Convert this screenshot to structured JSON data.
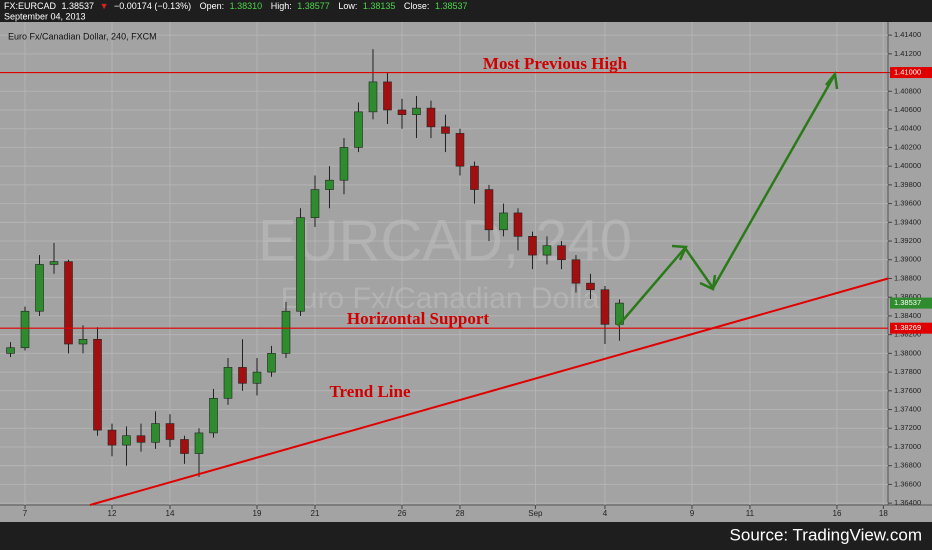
{
  "header": {
    "symbol": "FX:EURCAD",
    "last": "1.38537",
    "arrow": "▼",
    "change": "−0.00174 (−0.13%)",
    "open_label": "Open:",
    "open": "1.38310",
    "high_label": "High:",
    "high": "1.38577",
    "low_label": "Low:",
    "low": "1.38135",
    "close_label": "Close:",
    "close": "1.38537",
    "date": "September 04, 2013"
  },
  "chart_data": {
    "type": "candlestick",
    "title": "Euro Fx/Canadian Dollar, 240, FXCM",
    "watermark": [
      "EURCAD, 240",
      "Euro Fx/Canadian Dollar"
    ],
    "up_color": "#2e8b2e",
    "down_color": "#a01010",
    "grid": true,
    "x": [
      -0.5,
      0,
      0.5,
      1,
      1.5,
      2,
      2.5,
      3,
      3.5,
      4,
      4.5,
      5,
      5.5,
      6,
      6.5,
      7,
      7.5,
      8,
      8.5,
      9,
      9.5,
      10,
      10.5,
      11,
      11.5,
      12,
      12.5,
      13,
      13.5,
      14,
      14.5,
      15,
      15.5,
      16,
      16.5,
      17,
      17.5,
      18,
      18.5,
      19,
      19.5,
      20,
      20.5
    ],
    "open": [
      1.38,
      1.3806,
      1.3845,
      1.3895,
      1.3898,
      1.381,
      1.3815,
      1.3718,
      1.3702,
      1.3712,
      1.3705,
      1.3725,
      1.3708,
      1.3693,
      1.3715,
      1.3752,
      1.3785,
      1.3768,
      1.378,
      1.38,
      1.3845,
      1.3945,
      1.3975,
      1.3985,
      1.402,
      1.4058,
      1.409,
      1.406,
      1.4055,
      1.4062,
      1.4042,
      1.4035,
      1.4,
      1.3975,
      1.3932,
      1.395,
      1.3925,
      1.3905,
      1.3915,
      1.39,
      1.3875,
      1.3868,
      1.3831
    ],
    "high": [
      1.3812,
      1.385,
      1.3905,
      1.3918,
      1.39,
      1.383,
      1.3828,
      1.3725,
      1.3722,
      1.3725,
      1.3738,
      1.3735,
      1.3712,
      1.372,
      1.3762,
      1.3795,
      1.3815,
      1.3795,
      1.3808,
      1.3855,
      1.3955,
      1.399,
      1.4,
      1.403,
      1.4068,
      1.4125,
      1.41,
      1.4072,
      1.4075,
      1.407,
      1.4055,
      1.404,
      1.4005,
      1.398,
      1.396,
      1.3955,
      1.393,
      1.3925,
      1.392,
      1.3905,
      1.3885,
      1.3872,
      1.38577
    ],
    "low": [
      1.3796,
      1.3803,
      1.384,
      1.3885,
      1.38,
      1.38,
      1.3712,
      1.369,
      1.368,
      1.3695,
      1.3698,
      1.37,
      1.3682,
      1.3668,
      1.371,
      1.3745,
      1.376,
      1.3755,
      1.3775,
      1.3795,
      1.384,
      1.3935,
      1.3955,
      1.397,
      1.4015,
      1.405,
      1.4045,
      1.404,
      1.403,
      1.403,
      1.4015,
      1.399,
      1.396,
      1.392,
      1.3925,
      1.391,
      1.389,
      1.3895,
      1.389,
      1.3865,
      1.3858,
      1.381,
      1.38135
    ],
    "close": [
      1.3806,
      1.3845,
      1.3895,
      1.3898,
      1.381,
      1.3815,
      1.3718,
      1.3702,
      1.3712,
      1.3705,
      1.3725,
      1.3708,
      1.3693,
      1.3715,
      1.3752,
      1.3785,
      1.3768,
      1.378,
      1.38,
      1.3845,
      1.3945,
      1.3975,
      1.3985,
      1.402,
      1.4058,
      1.409,
      1.406,
      1.4055,
      1.4062,
      1.4042,
      1.4035,
      1.4,
      1.3975,
      1.3932,
      1.395,
      1.3925,
      1.3905,
      1.3915,
      1.39,
      1.3875,
      1.3868,
      1.3831,
      1.38537
    ],
    "xlim": [
      -0.862,
      29.76
    ],
    "xticks": [
      {
        "value": 0,
        "label": "7"
      },
      {
        "value": 3,
        "label": "12"
      },
      {
        "value": 5,
        "label": "14"
      },
      {
        "value": 8,
        "label": "19"
      },
      {
        "value": 10,
        "label": "21"
      },
      {
        "value": 13,
        "label": "26"
      },
      {
        "value": 15,
        "label": "28"
      },
      {
        "value": 17.6,
        "label": "Sep"
      },
      {
        "value": 20,
        "label": "4"
      },
      {
        "value": 23,
        "label": "9"
      },
      {
        "value": 25,
        "label": "11"
      },
      {
        "value": 28,
        "label": "16"
      },
      {
        "value": 29.6,
        "label": "18"
      }
    ],
    "ylim": [
      1.3638,
      1.4154
    ],
    "yticks": [
      {
        "value": 1.364,
        "label": "1.36400"
      },
      {
        "value": 1.366,
        "label": "1.36600"
      },
      {
        "value": 1.368,
        "label": "1.36800"
      },
      {
        "value": 1.37,
        "label": "1.37000"
      },
      {
        "value": 1.372,
        "label": "1.37200"
      },
      {
        "value": 1.374,
        "label": "1.37400"
      },
      {
        "value": 1.376,
        "label": "1.37600"
      },
      {
        "value": 1.378,
        "label": "1.37800"
      },
      {
        "value": 1.38,
        "label": "1.38000"
      },
      {
        "value": 1.382,
        "label": "1.38200"
      },
      {
        "value": 1.384,
        "label": "1.38400"
      },
      {
        "value": 1.386,
        "label": "1.38600"
      },
      {
        "value": 1.388,
        "label": "1.38800"
      },
      {
        "value": 1.39,
        "label": "1.39000"
      },
      {
        "value": 1.392,
        "label": "1.39200"
      },
      {
        "value": 1.394,
        "label": "1.39400"
      },
      {
        "value": 1.396,
        "label": "1.39600"
      },
      {
        "value": 1.398,
        "label": "1.39800"
      },
      {
        "value": 1.4,
        "label": "1.40000"
      },
      {
        "value": 1.402,
        "label": "1.40200"
      },
      {
        "value": 1.404,
        "label": "1.40400"
      },
      {
        "value": 1.406,
        "label": "1.40600"
      },
      {
        "value": 1.408,
        "label": "1.40800"
      },
      {
        "value": 1.41,
        "label": "1.41000"
      },
      {
        "value": 1.412,
        "label": "1.41200"
      },
      {
        "value": 1.414,
        "label": "1.41400"
      }
    ],
    "hlines": [
      {
        "value": 1.41,
        "label": "1.41000",
        "color": "#e00000"
      },
      {
        "value": 1.38269,
        "label": "1.38269",
        "color": "#e00000"
      }
    ],
    "last_price": {
      "value": 1.38537,
      "label": "1.38537",
      "color": "#2e8b2e"
    },
    "trend_line": {
      "x": [
        2.24,
        29.76
      ],
      "y": [
        1.3638,
        1.388
      ],
      "color": "#e00000"
    },
    "annotations": [
      "Most Previous High",
      "Horizontal Support",
      "Trend Line"
    ]
  },
  "footer": {
    "source": "Source: TradingView.com"
  }
}
